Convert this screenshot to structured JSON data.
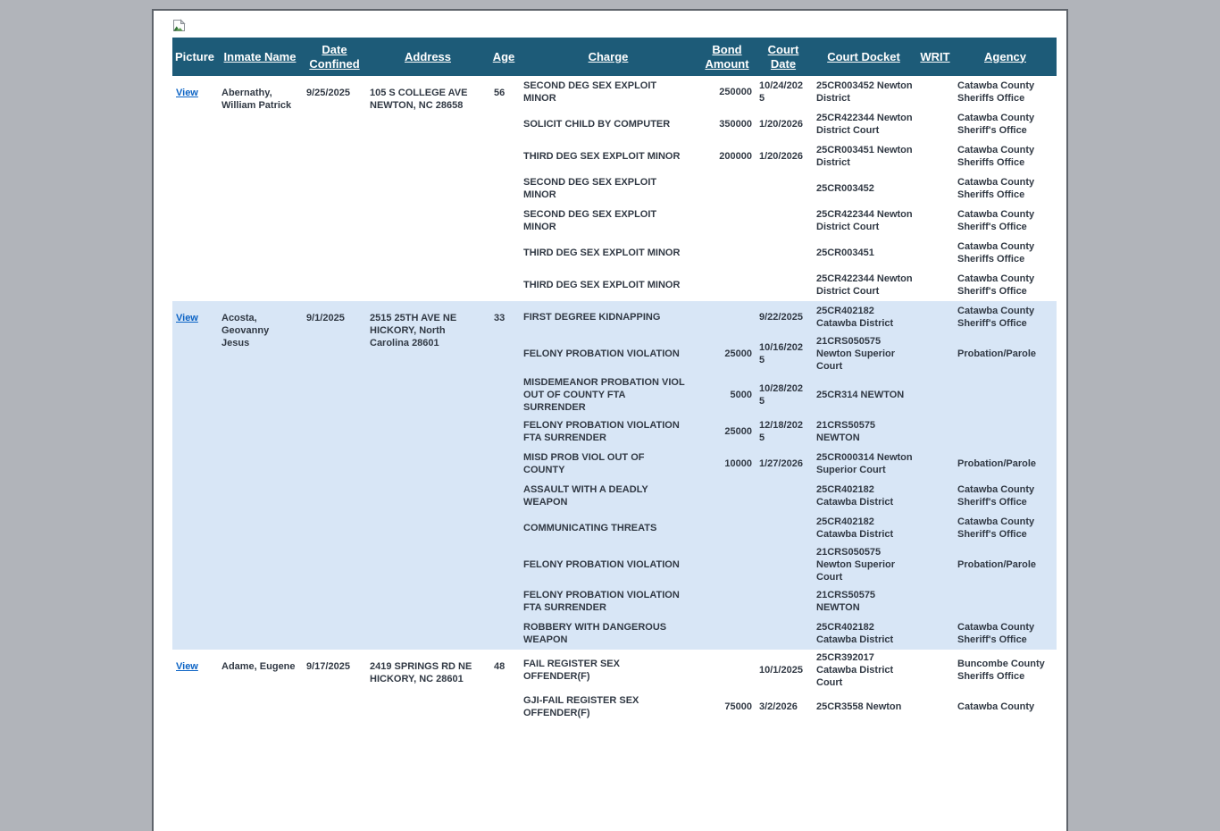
{
  "colors": {
    "outer_background": "#b1b4ba",
    "page_background": "#ffffff",
    "header_background": "#1d5b78",
    "header_text": "#ffffff",
    "alt_row_background": "#d8e6f6",
    "body_text": "#313944",
    "link": "#0b63c5"
  },
  "icons": {
    "broken_image": "broken-image-icon"
  },
  "table": {
    "view_label": "View",
    "columns": [
      {
        "label": "Picture",
        "sortable": false
      },
      {
        "label": "Inmate Name",
        "sortable": true
      },
      {
        "label": "Date Confined",
        "sortable": true
      },
      {
        "label": "Address",
        "sortable": true
      },
      {
        "label": "Age",
        "sortable": true
      },
      {
        "label": "Charge",
        "sortable": true
      },
      {
        "label": "Bond Amount",
        "sortable": true
      },
      {
        "label": "Court Date",
        "sortable": true
      },
      {
        "label": "Court Docket",
        "sortable": true
      },
      {
        "label": "WRIT",
        "sortable": true
      },
      {
        "label": "Agency",
        "sortable": true
      }
    ],
    "inmates": [
      {
        "name": "Abernathy, William Patrick",
        "date_confined": "9/25/2025",
        "address": "105 S COLLEGE AVE NEWTON, NC 28658",
        "age": "56",
        "charges": [
          {
            "charge": "SECOND DEG SEX EXPLOIT MINOR",
            "bond": "250000",
            "court_date": "10/24/2025",
            "docket": "25CR003452 Newton District",
            "writ": "",
            "agency": "Catawba County Sheriffs Office"
          },
          {
            "charge": "SOLICIT CHILD BY COMPUTER",
            "bond": "350000",
            "court_date": "1/20/2026",
            "docket": "25CR422344 Newton District Court",
            "writ": "",
            "agency": "Catawba County Sheriff's Office"
          },
          {
            "charge": "THIRD DEG SEX EXPLOIT MINOR",
            "bond": "200000",
            "court_date": "1/20/2026",
            "docket": "25CR003451 Newton District",
            "writ": "",
            "agency": "Catawba County Sheriffs Office"
          },
          {
            "charge": "SECOND DEG SEX EXPLOIT MINOR",
            "bond": "",
            "court_date": "",
            "docket": "25CR003452",
            "writ": "",
            "agency": "Catawba County Sheriffs Office"
          },
          {
            "charge": "SECOND DEG SEX EXPLOIT MINOR",
            "bond": "",
            "court_date": "",
            "docket": "25CR422344 Newton District Court",
            "writ": "",
            "agency": "Catawba County Sheriff's Office"
          },
          {
            "charge": "THIRD DEG SEX EXPLOIT MINOR",
            "bond": "",
            "court_date": "",
            "docket": "25CR003451",
            "writ": "",
            "agency": "Catawba County Sheriffs Office"
          },
          {
            "charge": "THIRD DEG SEX EXPLOIT MINOR",
            "bond": "",
            "court_date": "",
            "docket": "25CR422344 Newton District Court",
            "writ": "",
            "agency": "Catawba County Sheriff's Office"
          }
        ]
      },
      {
        "name": "Acosta, Geovanny Jesus",
        "date_confined": "9/1/2025",
        "address": "2515 25TH AVE NE HICKORY, North Carolina 28601",
        "age": "33",
        "charges": [
          {
            "charge": "FIRST DEGREE KIDNAPPING",
            "bond": "",
            "court_date": "9/22/2025",
            "docket": "25CR402182 Catawba District",
            "writ": "",
            "agency": "Catawba County Sheriff's Office"
          },
          {
            "charge": "FELONY PROBATION VIOLATION",
            "bond": "25000",
            "court_date": "10/16/2025",
            "docket": "21CRS050575 Newton Superior Court",
            "writ": "",
            "agency": "Probation/Parole"
          },
          {
            "charge": "MISDEMEANOR PROBATION VIOL OUT OF COUNTY FTA SURRENDER",
            "bond": "5000",
            "court_date": "10/28/2025",
            "docket": "25CR314 NEWTON",
            "writ": "",
            "agency": ""
          },
          {
            "charge": "FELONY PROBATION VIOLATION FTA SURRENDER",
            "bond": "25000",
            "court_date": "12/18/2025",
            "docket": "21CRS50575 NEWTON",
            "writ": "",
            "agency": ""
          },
          {
            "charge": "MISD PROB VIOL OUT OF COUNTY",
            "bond": "10000",
            "court_date": "1/27/2026",
            "docket": "25CR000314 Newton Superior Court",
            "writ": "",
            "agency": "Probation/Parole"
          },
          {
            "charge": "ASSAULT WITH A DEADLY WEAPON",
            "bond": "",
            "court_date": "",
            "docket": "25CR402182 Catawba District",
            "writ": "",
            "agency": "Catawba County Sheriff's Office"
          },
          {
            "charge": "COMMUNICATING THREATS",
            "bond": "",
            "court_date": "",
            "docket": "25CR402182 Catawba District",
            "writ": "",
            "agency": "Catawba County Sheriff's Office"
          },
          {
            "charge": "FELONY PROBATION VIOLATION",
            "bond": "",
            "court_date": "",
            "docket": "21CRS050575 Newton Superior Court",
            "writ": "",
            "agency": "Probation/Parole"
          },
          {
            "charge": "FELONY PROBATION VIOLATION FTA SURRENDER",
            "bond": "",
            "court_date": "",
            "docket": "21CRS50575 NEWTON",
            "writ": "",
            "agency": ""
          },
          {
            "charge": "ROBBERY WITH DANGEROUS WEAPON",
            "bond": "",
            "court_date": "",
            "docket": "25CR402182 Catawba District",
            "writ": "",
            "agency": "Catawba County Sheriff's Office"
          }
        ]
      },
      {
        "name": "Adame, Eugene",
        "date_confined": "9/17/2025",
        "address": "2419 SPRINGS RD NE HICKORY, NC 28601",
        "age": "48",
        "charges": [
          {
            "charge": "FAIL REGISTER SEX OFFENDER(F)",
            "bond": "",
            "court_date": "10/1/2025",
            "docket": "25CR392017 Catawba District Court",
            "writ": "",
            "agency": "Buncombe County Sheriffs Office"
          },
          {
            "charge": "GJI-FAIL REGISTER SEX OFFENDER(F)",
            "bond": "75000",
            "court_date": "3/2/2026",
            "docket": "25CR3558 Newton",
            "writ": "",
            "agency": "Catawba County"
          }
        ]
      }
    ]
  }
}
